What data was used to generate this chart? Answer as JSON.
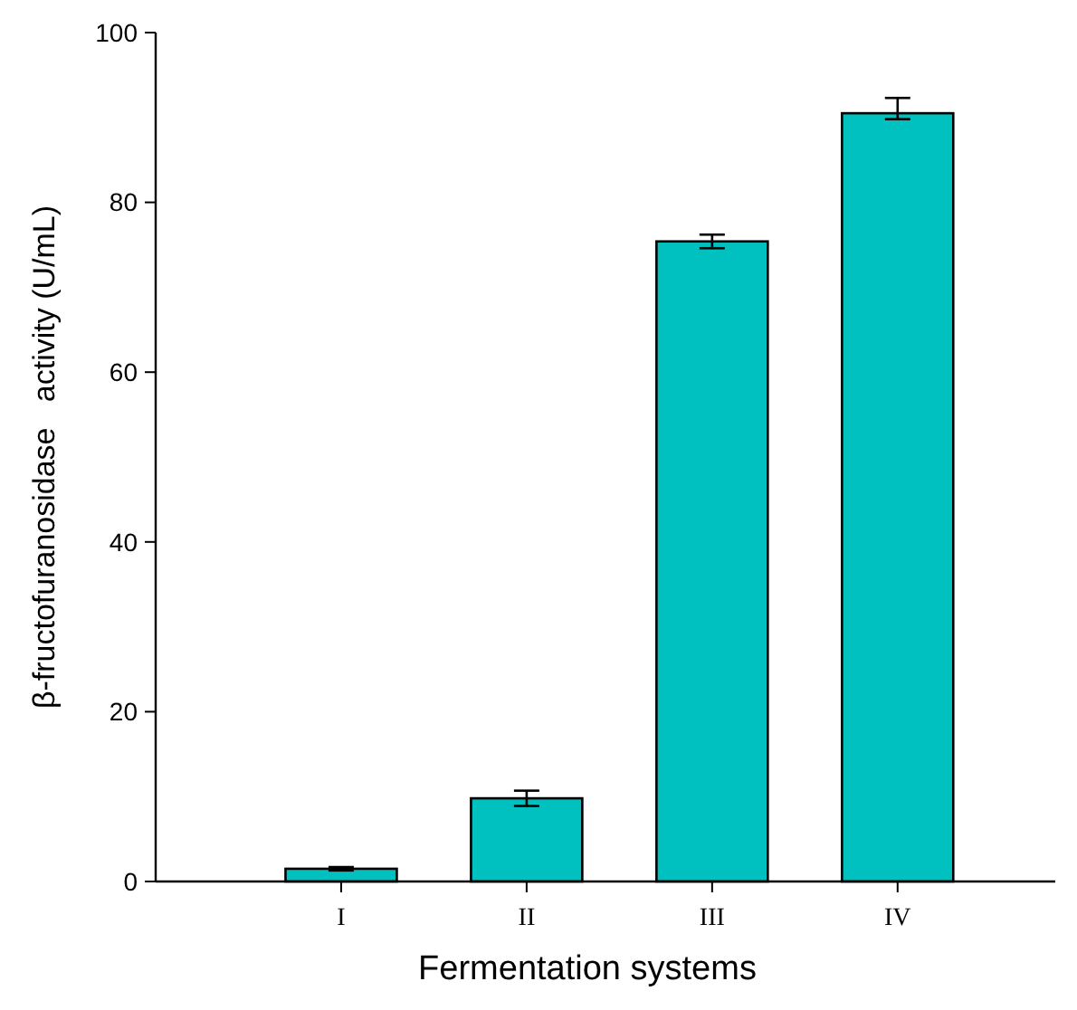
{
  "chart_data": {
    "type": "bar",
    "xlabel": "Fermentation systems",
    "ylabel": "β-fructofuranosidase   activity (U/mL)",
    "categories": [
      "I",
      "II",
      "III",
      "IV"
    ],
    "values": [
      1.5,
      9.8,
      75.4,
      90.5
    ],
    "errors": [
      0.2,
      0.9,
      0.8,
      [
        89.8,
        92.3
      ]
    ],
    "color": "#00c0c0",
    "ylim": [
      0,
      100
    ],
    "yticks": [
      0,
      20,
      40,
      60,
      80,
      100
    ],
    "grid": false
  }
}
